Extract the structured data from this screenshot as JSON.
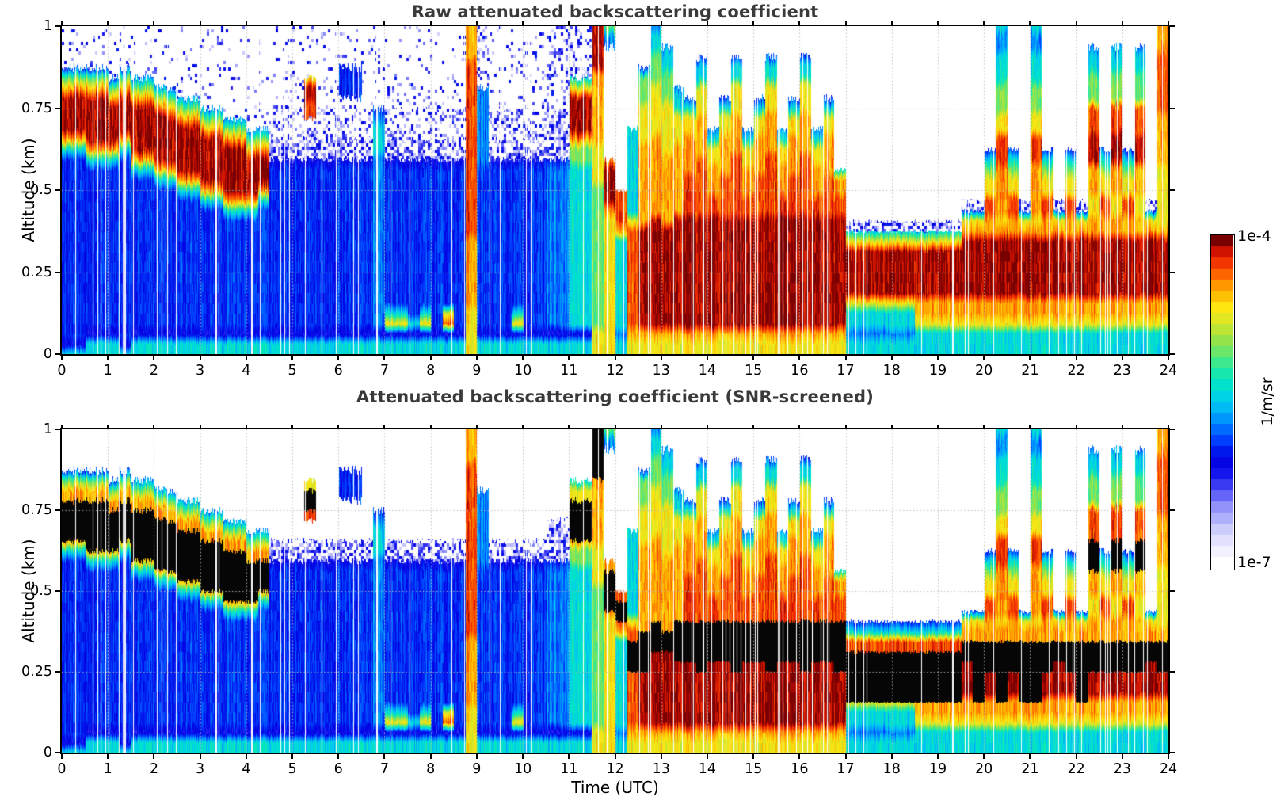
{
  "figure": {
    "background": "#ffffff",
    "title_color": "#3a3a3a",
    "text_color": "#000000"
  },
  "xlabel": "Time (UTC)",
  "x_tick_labels": [
    "0",
    "1",
    "2",
    "3",
    "4",
    "5",
    "6",
    "7",
    "8",
    "9",
    "10",
    "11",
    "12",
    "13",
    "14",
    "15",
    "16",
    "17",
    "18",
    "19",
    "20",
    "21",
    "22",
    "23",
    "24"
  ],
  "y_tick_labels": [
    {
      "value": 1,
      "label": "1"
    },
    {
      "value": 0.75,
      "label": "0.75"
    },
    {
      "value": 0.5,
      "label": "0.5"
    },
    {
      "value": 0.25,
      "label": "0.25"
    },
    {
      "value": 0,
      "label": "0"
    }
  ],
  "panels": [
    {
      "title": "Raw attenuated backscattering coefficient",
      "ylabel": "Altitude (km)"
    },
    {
      "title": "Attenuated backscattering coefficient (SNR-screened)",
      "ylabel": "Altitude (km)"
    }
  ],
  "colorbar": {
    "max_label": "1e-4",
    "min_label": "1e-7",
    "unit": "1/m/sr"
  },
  "colormap": [
    [
      0.0,
      "#ffffff"
    ],
    [
      0.05,
      "#ebebfe"
    ],
    [
      0.11,
      "#c8c8fc"
    ],
    [
      0.17,
      "#9191fa"
    ],
    [
      0.22,
      "#5050f5"
    ],
    [
      0.27,
      "#1616ee"
    ],
    [
      0.32,
      "#0000e1"
    ],
    [
      0.38,
      "#0043ff"
    ],
    [
      0.44,
      "#0090ff"
    ],
    [
      0.5,
      "#00cdf0"
    ],
    [
      0.56,
      "#00e7c3"
    ],
    [
      0.62,
      "#3ce88c"
    ],
    [
      0.68,
      "#8ce44e"
    ],
    [
      0.74,
      "#d2e629"
    ],
    [
      0.79,
      "#fee811"
    ],
    [
      0.84,
      "#ffb400"
    ],
    [
      0.89,
      "#ff6a00"
    ],
    [
      0.94,
      "#f02800"
    ],
    [
      0.97,
      "#c80f00"
    ],
    [
      1.0,
      "#780000"
    ]
  ],
  "heatmap_encoding": {
    "levels": {
      "0": -6.76,
      "1": -6.4,
      "2": -6.1,
      "3": -5.92,
      "4": -5.71,
      "5": -5.41,
      "6": -5.02,
      "7": -4.66,
      "8": -4.45,
      "9": -4.24,
      "R": -4.03
    },
    "black_char": "X",
    "empty_char": ".",
    "noise_density": {
      "n": 0.1,
      "m": 0.32,
      "h": 0.58
    },
    "value_meaning": "log10 of attenuated backscatter (1/m/sr)"
  },
  "chart_data": [
    {
      "id": "raw",
      "type": "heatmap",
      "title": "Raw attenuated backscattering coefficient",
      "xlabel": "Time (UTC)",
      "ylabel": "Altitude (km)",
      "x_range_hours": [
        0,
        24
      ],
      "y_range_km": [
        0,
        1
      ],
      "value_scale": {
        "min": 1e-07,
        "max": 0.0001,
        "scale": "log",
        "units": "1/m/sr"
      },
      "time_bins": 96,
      "alt_bins": 32,
      "seed": 7,
      "texture": {
        "stripes": [
          [
            0,
            5,
            0.1
          ],
          [
            5,
            8.75,
            0.055
          ],
          [
            8.75,
            12.3,
            0.05
          ],
          [
            12.3,
            17,
            0.11
          ],
          [
            17,
            19.5,
            0.045
          ],
          [
            19.5,
            24,
            0.075
          ]
        ]
      },
      "columns": [
        "nnnn368RRRR8533333333333333333325",
        "nnnn368RRRR8533333333333333333325",
        "nnnn368RRRRR85333333333333333325",
        "nnnn368RRRRR85333333333333333325",
        "nnnnn368RRRR85333333333333333325",
        "nnnn368RRRR8533333333333333333325",
        "nnnnn468RRRRR8533333333333333325",
        "nnnnn468RRRRR8533333333333333325",
        "nnnnnn468RRRRR853333333333333325",
        "nnnnnn468RRRRR853333333333333325",
        "nnnnnnn468RRRRR85333333333333325",
        "nnnnnnn468RRRRR85333333333333325",
        "nnnnnnnn468RRRRR8533333333333325",
        "nnnnnnnn468RRRRR8533333333333325",
        "nnnnnnnnn468RRRRR853333333333325",
        "nnnnnnnnn468RRRRR853333333333325",
        "nnnnnnnnnn468RRRR853333333333325",
        "nnnnnnnnnn468RRR8533333333333325",
        "nnnnnnnnmmmhh2333333333333333325",
        "nnnnnnnnmmmhh2333333333333333325",
        "nnnnnnnnmmmhh2333333333333333325",
        "nnnnn7RR9mmhh2333333333333333325",
        "nnnnnnnnmmmhh2333333333333333325",
        "nnnnnnnnmmmhh2333333333333333325",
        "nnnn333nmmmhh2333333333333333325",
        "nnnn333nmmmhh2333333333333333325",
        "nnnnnnnnmmmhh2333333333333333325",
        "nnnnnnnn345554444444444444444425",
        "nnnnnnnnmmmhh2333333333333335725",
        "nnnnnnnnmmmhh2333333333333335725",
        "nnnnnnnnmmmhh2333333333333333525",
        "nnnnnnnnmmmhh2333333333333335725",
        "nnnnnnnnmmmhh2333333333333333325",
        "nnnnnnnnmmmhh2333333333333337925",
        "nnnnnnnnmmmhh2333333333333333325",
        "88889999999999999999988888887777",
        "mmmmmm44444444333333333333333325",
        "nnnnnnnnmmmhh2333333333333333325",
        "nnnnnnnnmmmhh2333333333333333325",
        "nnnnnnnnmmmhh2333333333333335725",
        "nnnnnnnnmmmhh2333333333333333325",
        "nnnnnnnnmmmhh2333333333333333325",
        "mmmmmmmmhhhhh3444444444444444425",
        "mmmmmmmmhhhhh3444444444444444425",
        "mmmmm57RRRR866555555555555555525",
        "mmmmm57RRRR866555555555555555525",
        "RRRRR888888877776666666666666677",
        "64...........8RRRR87777777777777",
        "................9999855555555545",
        "..........5555555557999999999987",
        "....3666777788888888RRRRRRRRRR87",
        "4556667777788888888RRRRRRRRRRR87",
        "..455666777778888888RRRRRRRRRR87",
        "......4557778888888RRRRRRRRRRR87",
        ".......357788889999RRRRRRRRRRR87",
        "...3557778888999999RRRRRRRRRRR87",
        "..........457788899RRRRRRRRRRR87",
        ".......357788889999RRRRRRRRRRR87",
        "...3557778888999999RRRRRRRRRRR87",
        "..........457788899RRRRRRRRRRR87",
        ".......357788889999RRRRRRRRRRR87",
        "...3557778888999999RRRRRRRRRRR87",
        "..........457788899RRRRRRRRRRR87",
        ".......357788889999RRRRRRRRRRR87",
        "...3557778888999999RRRRRRRRRRR87",
        "..........457788899RRRRRRRRRRR87",
        ".......357788889999RRRRRRRRRRR87",
        "..............58899RRRRRRRRRRR87",
        "...................h57RRRRR75545",
        "...................h57RRRRR75545",
        "...................h57RRRRR75545",
        "...................h57RRRRR75545",
        "...................h57RRRRR75545",
        "...................h57RRRRR75545",
        "...................h57RRRRR88755",
        "...................h57RRRRR88755",
        "...................h57RRRRR88755",
        "...................h57RRRRR88755",
        ".................h378RRRRRR88755",
        ".................h378RRRRRR88755",
        "............356779988RRRRRR88755",
        "544555666779998888878RRRRRR88755",
        "............356779988RRRRRR88755",
        ".................h378RRRRRR88755",
        "544555666779998888878RRRRRR88755",
        "............356779988RRRRRR88755",
        ".................h378RRRRRR88755",
        "............356779988RRRRRR88755",
        ".................h378RRRRRR88755",
        "..455666999RRR8887788RRRRRR88755",
        "............356779988RRRRRR88755",
        "..455666999RRR8887788RRRRRR88755",
        "............356779988RRRRRR88755",
        "..455666999RRR8887788RRRRRR88755",
        ".................h378RRRRRR88755",
        "888999999888887777778RRRRRR88755"
      ]
    },
    {
      "id": "screened",
      "type": "heatmap",
      "title": "Attenuated backscattering coefficient (SNR-screened)",
      "xlabel": "Time (UTC)",
      "ylabel": "Altitude (km)",
      "x_range_hours": [
        0,
        24
      ],
      "y_range_km": [
        0,
        1
      ],
      "value_scale": {
        "min": 1e-07,
        "max": 0.0001,
        "scale": "log",
        "units": "1/m/sr"
      },
      "time_bins": 96,
      "alt_bins": 32,
      "seed": 7,
      "texture": {
        "stripes": [
          [
            0,
            5,
            0.1
          ],
          [
            5,
            8.75,
            0.055
          ],
          [
            8.75,
            12.3,
            0.05
          ],
          [
            12.3,
            17,
            0.11
          ],
          [
            17,
            19.5,
            0.045
          ],
          [
            19.5,
            24,
            0.075
          ]
        ]
      },
      "columns": [
        "....368XXXX8533333333333333333325",
        "....368XXXX8533333333333333333325",
        "....368XXXXX85333333333333333325",
        "....368XXXXX85333333333333333325",
        ".....368XXXX85333333333333333325",
        "....368XXXX8533333333333333333325",
        ".....468XXXXX8533333333333333325",
        ".....468XXXXX8533333333333333325",
        "......468XXXXX853333333333333325",
        "......468XXXXX853333333333333325",
        ".......468XXXXX85333333333333325",
        ".......468XXXXX85333333333333325",
        "........468XXXXX8533333333333325",
        "........468XXXXX8533333333333325",
        ".........468XXXXX853333333333325",
        ".........468XXXXX853333333333325",
        "..........468XXXX853333333333325",
        "..........468XXX8533333333333325",
        "...........hh2333333333333333325",
        "...........hh2333333333333333325",
        "...........hh2333333333333333325",
        ".....7XX9..hh2333333333333333325",
        "...........hh2333333333333333325",
        "...........hh2333333333333333325",
        "....333....hh2333333333333333325",
        "....333....hh2333333333333333325",
        "...........hh2333333333333333325",
        "........345554444444444444444425",
        "...........hh2333333333333335725",
        "...........hh2333333333333335725",
        "...........hh2333333333333333525",
        "...........hh2333333333333335725",
        "...........hh2333333333333333325",
        "...........hh2333333333333337925",
        "...........hh2333333333333333325",
        "88889999999999999999988888887777",
        "......44444444333333333333333325",
        "...........hh2333333333333333325",
        "...........hh2333333333333333325",
        "...........hh2333333333333335725",
        "...........hh2333333333333333325",
        "...........hh2333333333333333325",
        ".........hhhh3444444444444444425",
        ".........hhhh3444444444444444425",
        ".....57XXXX866555555555555555525",
        ".....57XXXX866555555555555555525",
        "XXXXX888888877776666666666666677",
        "64...........8XXXX87777777777777",
        "................9XX9855555555545",
        "..........55555555579XXX99999987",
        "....3666777788888888XXXXRRRRRR87",
        "4556667777788888888XXXRRRRRRRR87",
        "..455666777778888888XXRRRRRRRR87",
        "......4557778888888XXXXRRRRRRR87",
        ".......357788889999XXXXRRRRRRR87",
        "...3557778888999999XXXXXRRRRRR87",
        "..........457788899XXXXRRRRRRR87",
        ".......357788889999XXXXRRRRRRR87",
        "...3557778888999999XXXXXRRRRRR87",
        "..........457788899XXXXRRRRRRR87",
        ".......357788889999XXXXRRRRRRR87",
        "...3557778888999999XXXXXRRRRRR87",
        "..........457788899XXXXRRRRRRR87",
        ".......357788889999XXXXRRRRRRR87",
        "...3557778888999999XXXXXRRRRRR87",
        "..........457788899XXXXRRRRRRR87",
        ".......357788889999XXXXRRRRRRR87",
        "..............58899XXXXXRRRRRR87",
        "...................359XXXXX75545",
        "...................359XXXXX75545",
        "...................359XXXXX75545",
        "...................359XXXXX75545",
        "...................359XXXXX75545",
        "...................359XXXXX75545",
        "...................359XXXXX88755",
        "...................359XXXXX88755",
        "...................359XXXXX88755",
        "...................359XXXXX88755",
        "..................378XXRRRR88755",
        "..................378XXXXXX88755",
        "............356779988XXXRRR88755",
        "544555666779998888878XXXXXX88755",
        "............356779988XXXRRR88755",
        "..................378XXXXXX88755",
        "544555666779998888878XXXXXX88755",
        "............356779988XXXRRR88755",
        "..................378XXRRRR88755",
        "............356779988XXXRRR88755",
        "..................378XXXXXX88755",
        "..455666999XXX8887788XXXRRR88755",
        "............356779988XXXRRR88755",
        "..455666999XXX8887788XXXRRR88755",
        "............356779988XXXRRR88755",
        "..455666999XXX8887788XXXRRR88755",
        "..................378XXRRRR88755",
        "888999999888887777778XXXRRR88755"
      ]
    }
  ]
}
